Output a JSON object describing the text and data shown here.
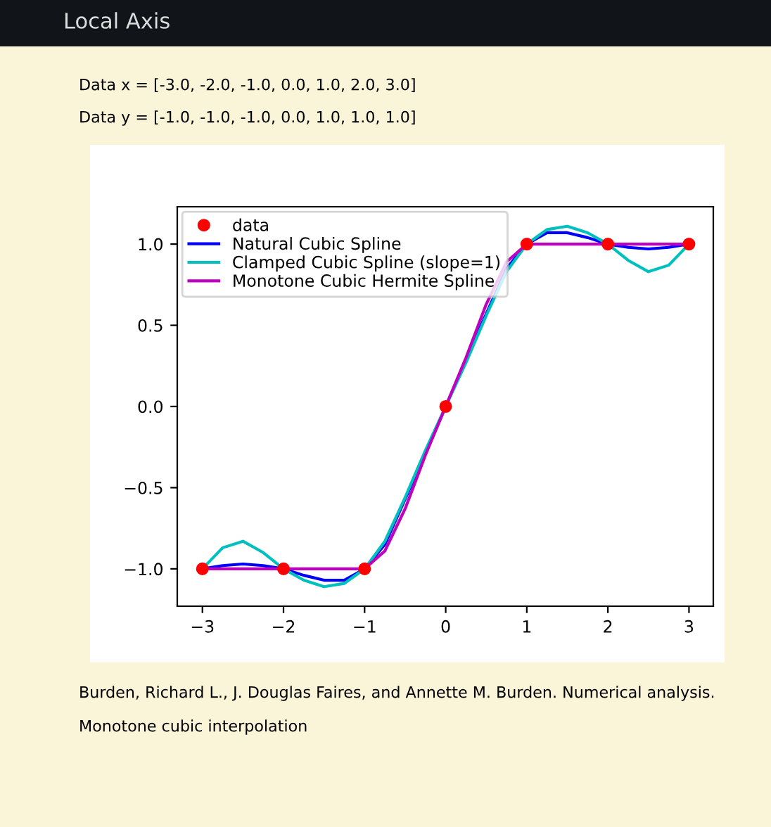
{
  "chart_data": {
    "type": "line",
    "annotations": [
      "Local Axis",
      "Data x = [-3.0, -2.0, -1.0, 0.0, 1.0, 2.0, 3.0]",
      "Data y = [-1.0, -1.0, -1.0, 0.0, 1.0, 1.0, 1.0]",
      "Burden, Richard L., J. Douglas Faires, and Annette M. Burden. Numerical analysis.",
      "Monotone cubic interpolation"
    ],
    "series": [
      {
        "name": "data",
        "type": "scatter",
        "color": "#ff0000",
        "marker": "circle",
        "x": [
          -3,
          -2,
          -1,
          0,
          1,
          2,
          3
        ],
        "values": [
          -1,
          -1,
          -1,
          0,
          1,
          1,
          1
        ]
      },
      {
        "name": "Natural Cubic Spline",
        "color": "#0000ff",
        "x": [
          -3,
          -2.75,
          -2.5,
          -2.25,
          -2,
          -1.75,
          -1.5,
          -1.25,
          -1,
          -0.75,
          -0.5,
          -0.25,
          0,
          0.25,
          0.5,
          0.75,
          1,
          1.25,
          1.5,
          1.75,
          2,
          2.25,
          2.5,
          2.75,
          3
        ],
        "values": [
          -1,
          -0.98,
          -0.97,
          -0.98,
          -1,
          -1.04,
          -1.07,
          -1.07,
          -1,
          -0.85,
          -0.57,
          -0.29,
          0,
          0.29,
          0.57,
          0.85,
          1,
          1.07,
          1.07,
          1.04,
          1,
          0.98,
          0.97,
          0.98,
          1
        ]
      },
      {
        "name": "Clamped Cubic Spline (slope=1)",
        "color": "#00bfbf",
        "x": [
          -3,
          -2.75,
          -2.5,
          -2.25,
          -2,
          -1.75,
          -1.5,
          -1.25,
          -1,
          -0.75,
          -0.5,
          -0.25,
          0,
          0.25,
          0.5,
          0.75,
          1,
          1.25,
          1.5,
          1.75,
          2,
          2.25,
          2.5,
          2.75,
          3
        ],
        "values": [
          -1,
          -0.87,
          -0.83,
          -0.9,
          -1,
          -1.07,
          -1.11,
          -1.09,
          -1,
          -0.83,
          -0.56,
          -0.27,
          0,
          0.27,
          0.56,
          0.83,
          1,
          1.09,
          1.11,
          1.07,
          1,
          0.9,
          0.83,
          0.87,
          1
        ]
      },
      {
        "name": "Monotone Cubic Hermite Spline",
        "color": "#bf00bf",
        "x": [
          -3,
          -2,
          -1,
          -0.75,
          -0.5,
          -0.25,
          0,
          0.25,
          0.5,
          0.75,
          1,
          2,
          3
        ],
        "values": [
          -1,
          -1,
          -1,
          -0.89,
          -0.63,
          -0.3,
          0,
          0.3,
          0.63,
          0.89,
          1,
          1,
          1
        ]
      }
    ],
    "xlim": [
      -3.31,
      3.3
    ],
    "ylim": [
      -1.23,
      1.23
    ],
    "xticks": [
      {
        "value": -3,
        "label": "−3"
      },
      {
        "value": -2,
        "label": "−2"
      },
      {
        "value": -1,
        "label": "−1"
      },
      0,
      1,
      2,
      3
    ],
    "yticks": [
      {
        "value": -1,
        "label": "−1.0"
      },
      {
        "value": -0.5,
        "label": "−0.5"
      },
      {
        "value": 0,
        "label": "0.0"
      },
      {
        "value": 0.5,
        "label": "0.5"
      },
      {
        "value": 1,
        "label": "1.0"
      }
    ],
    "grid": false,
    "legend": "top left",
    "marker": "none",
    "line_style": "solid"
  }
}
